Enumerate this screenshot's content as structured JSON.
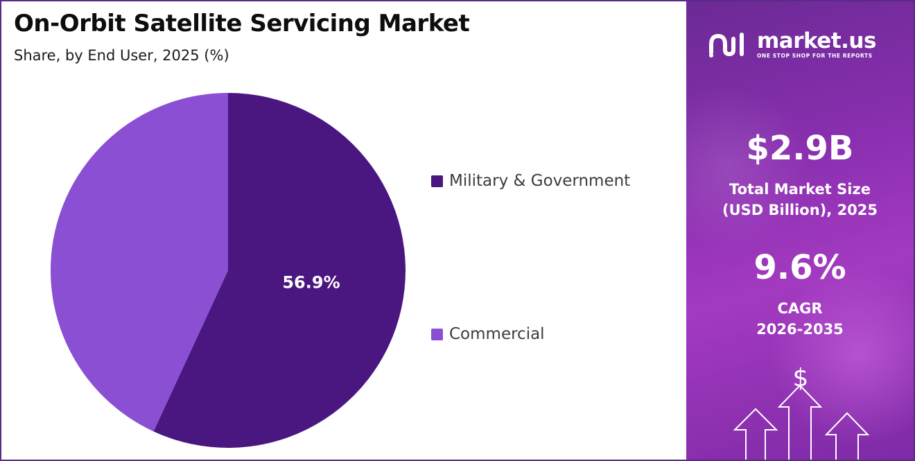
{
  "header": {
    "title": "On-Orbit Satellite Servicing Market",
    "subtitle": "Share, by End User, 2025 (%)"
  },
  "colors": {
    "military": "#4a1680",
    "commercial": "#8b4fd4",
    "border": "#5a2a86"
  },
  "chart_data": {
    "type": "pie",
    "slices": [
      {
        "name": "Military & Government",
        "value": 56.9,
        "label": "56.9%",
        "color": "#4a1680"
      },
      {
        "name": "Commercial",
        "value": 43.1,
        "label": "",
        "color": "#8b4fd4"
      }
    ],
    "start_angle_deg": 0,
    "direction": "clockwise",
    "legend": [
      "Military & Government",
      "Commercial"
    ],
    "legend_placement": "right"
  },
  "sidebar": {
    "brand": {
      "name": "market.us",
      "tagline": "ONE STOP SHOP FOR THE REPORTS",
      "icon": "market-us-logo-icon"
    },
    "market_size": {
      "value": "$2.9B",
      "label_line1": "Total Market Size",
      "label_line2": "(USD Billion), 2025"
    },
    "cagr": {
      "value": "9.6%",
      "label_line1": "CAGR",
      "label_line2": "2026-2035"
    },
    "icons": [
      "dollar-sign-icon",
      "up-arrow-icon"
    ],
    "dollar_glyph": "$"
  }
}
